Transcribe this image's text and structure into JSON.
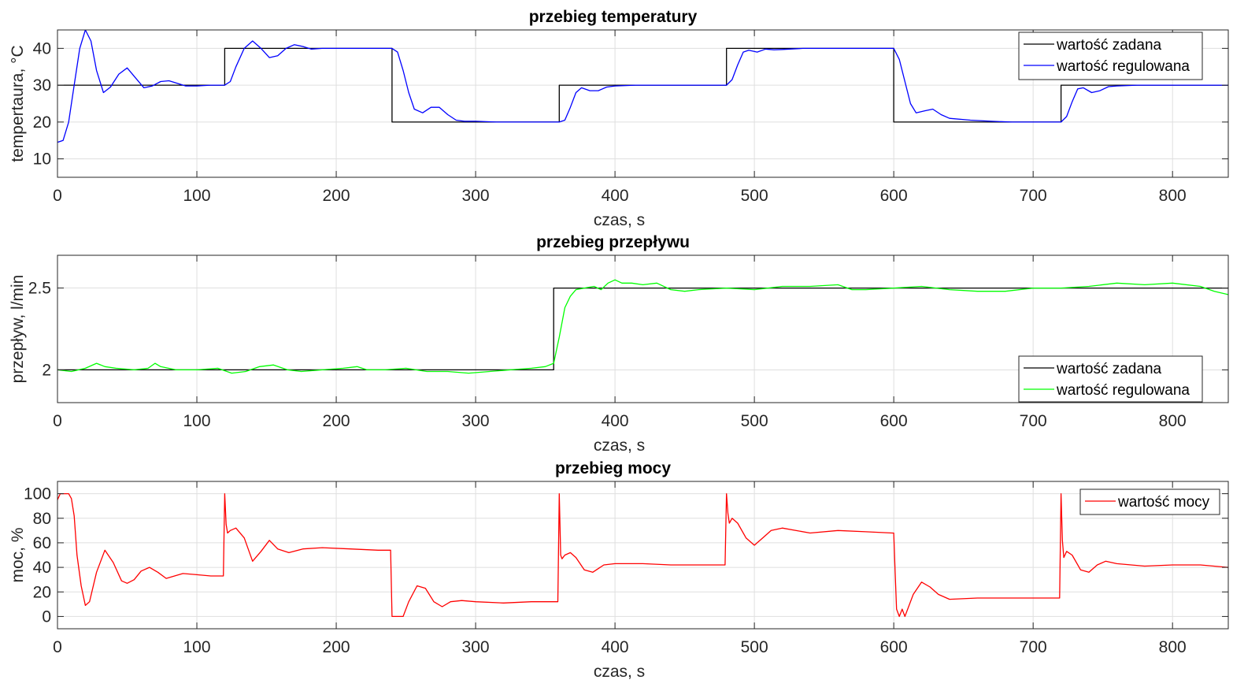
{
  "chart_data": [
    {
      "type": "line",
      "title": "przebieg temperatury",
      "xlabel": "czas, s",
      "ylabel": "tempertaura, °C",
      "xlim": [
        0,
        840
      ],
      "ylim": [
        5,
        45
      ],
      "xticks": [
        0,
        100,
        200,
        300,
        400,
        500,
        600,
        700,
        800
      ],
      "yticks": [
        10,
        20,
        30,
        40
      ],
      "grid": true,
      "legend": "top-right",
      "series": [
        {
          "name": "wartość zadana",
          "color": "#000000",
          "step": true,
          "x": [
            0,
            120,
            240,
            360,
            480,
            600,
            720,
            840
          ],
          "y": [
            30,
            40,
            20,
            30,
            40,
            20,
            30,
            30
          ]
        },
        {
          "name": "wartość regulowana",
          "color": "#0000ff",
          "x": [
            0,
            4,
            8,
            12,
            16,
            20,
            24,
            28,
            33,
            38,
            44,
            50,
            56,
            62,
            68,
            74,
            80,
            86,
            92,
            100,
            110,
            120,
            124,
            128,
            134,
            140,
            146,
            152,
            158,
            164,
            170,
            176,
            182,
            190,
            200,
            215,
            230,
            240,
            244,
            248,
            252,
            256,
            262,
            268,
            274,
            280,
            286,
            292,
            300,
            315,
            330,
            345,
            360,
            364,
            368,
            372,
            376,
            382,
            388,
            394,
            400,
            415,
            430,
            445,
            460,
            470,
            480,
            484,
            488,
            492,
            496,
            502,
            508,
            514,
            520,
            535,
            550,
            565,
            580,
            590,
            600,
            604,
            608,
            612,
            616,
            622,
            628,
            634,
            640,
            655,
            670,
            685,
            700,
            710,
            720,
            724,
            728,
            732,
            736,
            742,
            748,
            754,
            760,
            775,
            790,
            805,
            820,
            840
          ],
          "y": [
            14.5,
            15,
            20,
            30,
            40,
            45,
            42,
            34,
            28,
            29.5,
            33,
            34.7,
            32,
            29.3,
            29.8,
            31,
            31.2,
            30.5,
            29.8,
            29.8,
            30,
            30,
            31,
            35,
            40,
            42,
            40,
            37.5,
            38,
            40,
            41,
            40.5,
            39.8,
            40,
            40,
            40,
            40,
            40,
            39,
            34,
            28,
            23.5,
            22.5,
            24,
            24,
            22,
            20.5,
            20.2,
            20.2,
            20,
            20,
            20,
            20,
            20.5,
            24,
            28,
            29.3,
            28.5,
            28.5,
            29.5,
            29.8,
            30,
            30,
            30,
            30,
            30,
            30,
            31.5,
            35.5,
            39,
            39.5,
            39,
            39.8,
            39.6,
            39.7,
            40,
            40,
            40,
            40,
            40,
            40,
            37,
            31,
            25,
            22.5,
            23,
            23.5,
            22,
            21,
            20.5,
            20.2,
            20,
            20,
            20,
            20,
            21.5,
            25.5,
            29,
            29.3,
            28,
            28.5,
            29.6,
            29.8,
            30,
            30,
            30,
            30,
            30
          ]
        }
      ]
    },
    {
      "type": "line",
      "title": "przebieg przepływu",
      "xlabel": "czas, s",
      "ylabel": "przepływ, l/min",
      "xlim": [
        0,
        840
      ],
      "ylim": [
        1.8,
        2.7
      ],
      "xticks": [
        0,
        100,
        200,
        300,
        400,
        500,
        600,
        700,
        800
      ],
      "yticks": [
        2,
        2.5
      ],
      "grid": true,
      "legend": "bottom-right",
      "series": [
        {
          "name": "wartość zadana",
          "color": "#000000",
          "step": true,
          "x": [
            0,
            356,
            840
          ],
          "y": [
            2,
            2.5,
            2.5
          ]
        },
        {
          "name": "wartość regulowana",
          "color": "#00ff00",
          "x": [
            0,
            10,
            20,
            28,
            34,
            42,
            55,
            65,
            70,
            74,
            85,
            100,
            115,
            125,
            135,
            145,
            155,
            165,
            175,
            190,
            205,
            215,
            222,
            235,
            250,
            265,
            280,
            295,
            310,
            325,
            340,
            350,
            356,
            360,
            364,
            368,
            372,
            378,
            385,
            390,
            395,
            400,
            405,
            412,
            420,
            430,
            440,
            450,
            460,
            480,
            500,
            520,
            540,
            560,
            570,
            580,
            600,
            620,
            640,
            660,
            680,
            700,
            720,
            740,
            760,
            780,
            800,
            820,
            830,
            840
          ],
          "y": [
            2,
            1.99,
            2.01,
            2.04,
            2.02,
            2.01,
            2,
            2.01,
            2.04,
            2.02,
            2,
            2,
            2.01,
            1.98,
            1.99,
            2.02,
            2.03,
            2,
            1.99,
            2,
            2.01,
            2.02,
            2,
            2,
            2.01,
            1.99,
            1.99,
            1.98,
            1.99,
            2,
            2.01,
            2.02,
            2.04,
            2.2,
            2.38,
            2.45,
            2.49,
            2.5,
            2.51,
            2.49,
            2.53,
            2.55,
            2.53,
            2.53,
            2.52,
            2.53,
            2.49,
            2.48,
            2.49,
            2.5,
            2.49,
            2.51,
            2.51,
            2.52,
            2.49,
            2.49,
            2.5,
            2.51,
            2.49,
            2.48,
            2.48,
            2.5,
            2.5,
            2.51,
            2.53,
            2.52,
            2.53,
            2.51,
            2.48,
            2.46
          ]
        }
      ]
    },
    {
      "type": "line",
      "title": "przebieg mocy",
      "xlabel": "czas, s",
      "ylabel": "moc, %",
      "xlim": [
        0,
        840
      ],
      "ylim": [
        -10,
        110
      ],
      "xticks": [
        0,
        100,
        200,
        300,
        400,
        500,
        600,
        700,
        800
      ],
      "yticks": [
        0,
        20,
        40,
        60,
        80,
        100
      ],
      "grid": true,
      "legend": "top-right",
      "series": [
        {
          "name": "wartość mocy",
          "color": "#ff0000",
          "x": [
            0,
            2,
            4,
            8,
            10,
            12,
            14,
            17,
            20,
            23,
            28,
            34,
            40,
            46,
            50,
            55,
            60,
            66,
            72,
            78,
            84,
            90,
            100,
            110,
            119,
            120,
            121,
            122,
            124,
            128,
            134,
            140,
            146,
            152,
            158,
            166,
            176,
            190,
            210,
            230,
            239,
            240,
            241,
            244,
            248,
            252,
            258,
            264,
            270,
            276,
            282,
            290,
            300,
            320,
            340,
            359,
            360,
            361,
            362,
            364,
            368,
            372,
            378,
            384,
            392,
            400,
            420,
            440,
            460,
            479,
            480,
            481,
            482,
            484,
            488,
            494,
            500,
            506,
            512,
            520,
            540,
            560,
            580,
            599,
            600,
            601,
            602,
            604,
            606,
            608,
            614,
            620,
            626,
            632,
            640,
            660,
            680,
            700,
            719,
            720,
            721,
            722,
            724,
            728,
            734,
            740,
            746,
            752,
            760,
            780,
            800,
            820,
            840
          ],
          "y": [
            95,
            100,
            100,
            100,
            96,
            82,
            50,
            25,
            9,
            12,
            36,
            54,
            44,
            29,
            27,
            30,
            37,
            40,
            36,
            31,
            33,
            35,
            34,
            33,
            33,
            100,
            75,
            68,
            70,
            72,
            64,
            45,
            53,
            62,
            55,
            52,
            55,
            56,
            55,
            54,
            54,
            0,
            0,
            0,
            0,
            12,
            25,
            23,
            12,
            8,
            12,
            13,
            12,
            11,
            12,
            12,
            100,
            50,
            47,
            50,
            52,
            48,
            38,
            36,
            42,
            43,
            43,
            42,
            42,
            42,
            100,
            84,
            76,
            80,
            76,
            64,
            58,
            64,
            70,
            72,
            68,
            70,
            69,
            68,
            68,
            36,
            6,
            0,
            6,
            0,
            18,
            28,
            24,
            18,
            14,
            15,
            15,
            15,
            15,
            100,
            62,
            48,
            53,
            50,
            38,
            36,
            42,
            45,
            43,
            41,
            42,
            42,
            40
          ]
        }
      ]
    }
  ]
}
